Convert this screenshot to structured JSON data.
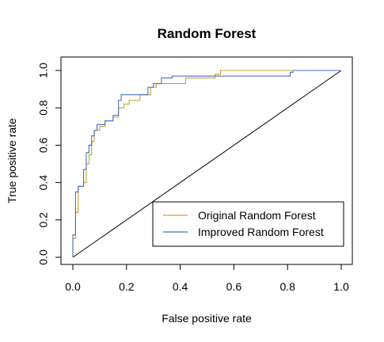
{
  "chart_data": {
    "type": "line",
    "title": "Random Forest",
    "xlabel": "False positive rate",
    "ylabel": "True positive rate",
    "xlim": [
      0,
      1
    ],
    "ylim": [
      0,
      1
    ],
    "xticks": [
      "0.0",
      "0.2",
      "0.4",
      "0.6",
      "0.8",
      "1.0"
    ],
    "yticks": [
      "0.0",
      "0.2",
      "0.4",
      "0.6",
      "0.8",
      "1.0"
    ],
    "grid": false,
    "legend_position": "bottom-right",
    "reference_line": {
      "from": [
        0,
        0
      ],
      "to": [
        1,
        1
      ],
      "color": "#000000"
    },
    "series": [
      {
        "name": "Original Random Forest",
        "color": "#C9A227",
        "points": [
          [
            0.0,
            0.0
          ],
          [
            0.0,
            0.1
          ],
          [
            0.01,
            0.1
          ],
          [
            0.01,
            0.24
          ],
          [
            0.02,
            0.24
          ],
          [
            0.02,
            0.38
          ],
          [
            0.04,
            0.38
          ],
          [
            0.04,
            0.4
          ],
          [
            0.05,
            0.4
          ],
          [
            0.05,
            0.5
          ],
          [
            0.06,
            0.5
          ],
          [
            0.06,
            0.55
          ],
          [
            0.07,
            0.55
          ],
          [
            0.07,
            0.62
          ],
          [
            0.08,
            0.62
          ],
          [
            0.08,
            0.68
          ],
          [
            0.1,
            0.68
          ],
          [
            0.1,
            0.7
          ],
          [
            0.12,
            0.7
          ],
          [
            0.12,
            0.73
          ],
          [
            0.15,
            0.73
          ],
          [
            0.15,
            0.75
          ],
          [
            0.17,
            0.75
          ],
          [
            0.17,
            0.8
          ],
          [
            0.19,
            0.8
          ],
          [
            0.19,
            0.82
          ],
          [
            0.21,
            0.82
          ],
          [
            0.21,
            0.84
          ],
          [
            0.25,
            0.84
          ],
          [
            0.25,
            0.87
          ],
          [
            0.29,
            0.87
          ],
          [
            0.29,
            0.91
          ],
          [
            0.31,
            0.91
          ],
          [
            0.31,
            0.93
          ],
          [
            0.42,
            0.93
          ],
          [
            0.42,
            0.96
          ],
          [
            0.53,
            0.96
          ],
          [
            0.53,
            0.98
          ],
          [
            0.55,
            0.98
          ],
          [
            0.55,
            1.0
          ],
          [
            1.0,
            1.0
          ]
        ]
      },
      {
        "name": "Improved Random Forest",
        "color": "#4472C4",
        "points": [
          [
            0.0,
            0.0
          ],
          [
            0.0,
            0.12
          ],
          [
            0.01,
            0.12
          ],
          [
            0.01,
            0.22
          ],
          [
            0.01,
            0.35
          ],
          [
            0.02,
            0.35
          ],
          [
            0.02,
            0.38
          ],
          [
            0.03,
            0.38
          ],
          [
            0.04,
            0.38
          ],
          [
            0.04,
            0.47
          ],
          [
            0.05,
            0.47
          ],
          [
            0.05,
            0.56
          ],
          [
            0.06,
            0.56
          ],
          [
            0.06,
            0.6
          ],
          [
            0.07,
            0.6
          ],
          [
            0.07,
            0.65
          ],
          [
            0.08,
            0.65
          ],
          [
            0.08,
            0.68
          ],
          [
            0.09,
            0.68
          ],
          [
            0.09,
            0.71
          ],
          [
            0.12,
            0.71
          ],
          [
            0.12,
            0.73
          ],
          [
            0.15,
            0.73
          ],
          [
            0.15,
            0.76
          ],
          [
            0.17,
            0.76
          ],
          [
            0.17,
            0.84
          ],
          [
            0.18,
            0.84
          ],
          [
            0.18,
            0.87
          ],
          [
            0.28,
            0.87
          ],
          [
            0.28,
            0.91
          ],
          [
            0.3,
            0.91
          ],
          [
            0.3,
            0.93
          ],
          [
            0.33,
            0.93
          ],
          [
            0.33,
            0.96
          ],
          [
            0.37,
            0.96
          ],
          [
            0.37,
            0.97
          ],
          [
            0.81,
            0.97
          ],
          [
            0.81,
            0.99
          ],
          [
            0.82,
            0.99
          ],
          [
            0.82,
            1.0
          ],
          [
            1.0,
            1.0
          ]
        ]
      }
    ]
  }
}
